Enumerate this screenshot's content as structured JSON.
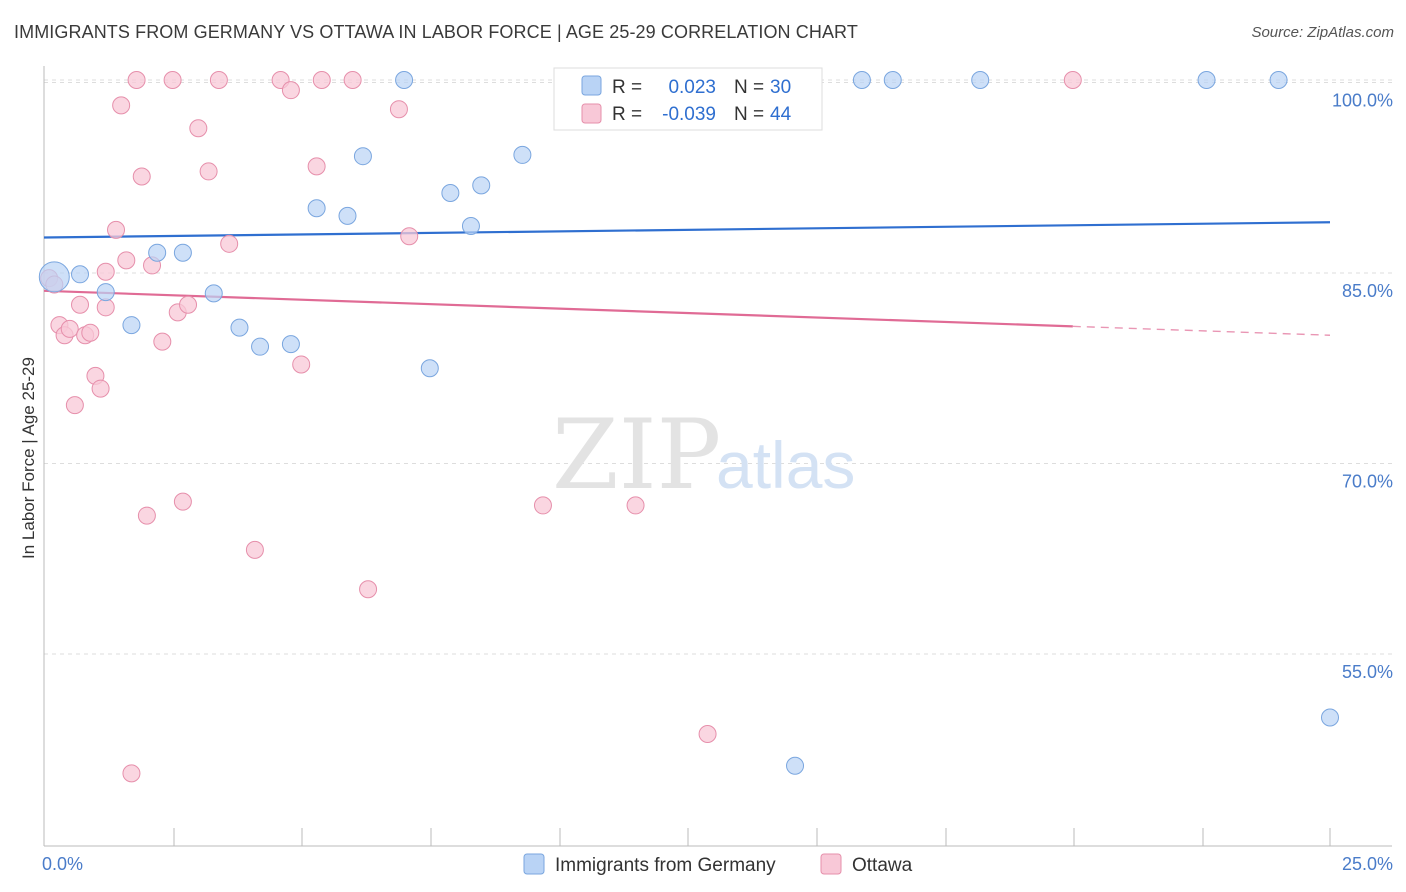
{
  "title": "IMMIGRANTS FROM GERMANY VS OTTAWA IN LABOR FORCE | AGE 25-29 CORRELATION CHART",
  "source": "Source: ZipAtlas.com",
  "watermark": {
    "zip": "ZIP",
    "atlas": "atlas"
  },
  "legend": {
    "r_label": "R =",
    "n_label": "N =",
    "entries": [
      {
        "r": "0.023",
        "n": "30"
      },
      {
        "r": "-0.039",
        "n": "44"
      }
    ]
  },
  "colors": {
    "germany_fill": "#b9d3f5",
    "germany_stroke": "#7aa6df",
    "germany_line": "#2f6fd0",
    "ottawa_fill": "#f8c8d7",
    "ottawa_stroke": "#e68fab",
    "ottawa_line": "#e06b95",
    "grid": "#dddddd",
    "axis_text": "#4a7cc9"
  },
  "chart_data": {
    "type": "scatter",
    "title": "IMMIGRANTS FROM GERMANY VS OTTAWA IN LABOR FORCE | AGE 25-29 CORRELATION CHART",
    "xlabel": "",
    "ylabel": "In Labor Force | Age 25-29",
    "xlim": [
      0,
      25
    ],
    "ylim": [
      40,
      101.5
    ],
    "x_ticks": [
      {
        "value": 0,
        "label": "0.0%"
      },
      {
        "value": 25,
        "label": "25.0%"
      }
    ],
    "y_ticks": [
      {
        "value": 100,
        "label": "100.0%"
      },
      {
        "value": 85,
        "label": "85.0%"
      },
      {
        "value": 70,
        "label": "70.0%"
      },
      {
        "value": 55,
        "label": "55.0%"
      }
    ],
    "grid": true,
    "legend_position": "top-center",
    "series": [
      {
        "name": "Immigrants from Germany",
        "r": 0.023,
        "n": 30,
        "trend": {
          "x0": 0,
          "y0": 87.8,
          "x1": 25,
          "y1": 89.0
        },
        "points": [
          {
            "x": 0.2,
            "y": 84.7
          },
          {
            "x": 0.7,
            "y": 84.9
          },
          {
            "x": 1.2,
            "y": 83.5
          },
          {
            "x": 1.7,
            "y": 80.9
          },
          {
            "x": 2.2,
            "y": 86.6
          },
          {
            "x": 2.7,
            "y": 86.6
          },
          {
            "x": 3.3,
            "y": 83.4
          },
          {
            "x": 3.8,
            "y": 80.7
          },
          {
            "x": 4.2,
            "y": 79.2
          },
          {
            "x": 4.8,
            "y": 79.4
          },
          {
            "x": 5.3,
            "y": 90.1
          },
          {
            "x": 5.9,
            "y": 89.5
          },
          {
            "x": 6.2,
            "y": 94.2
          },
          {
            "x": 7.0,
            "y": 100.2
          },
          {
            "x": 7.5,
            "y": 77.5
          },
          {
            "x": 7.9,
            "y": 91.3
          },
          {
            "x": 8.3,
            "y": 88.7
          },
          {
            "x": 8.5,
            "y": 91.9
          },
          {
            "x": 9.3,
            "y": 94.3
          },
          {
            "x": 10.7,
            "y": 100.2
          },
          {
            "x": 11.4,
            "y": 100.3
          },
          {
            "x": 12.0,
            "y": 100.2
          },
          {
            "x": 14.0,
            "y": 100.2
          },
          {
            "x": 14.6,
            "y": 46.2
          },
          {
            "x": 15.9,
            "y": 100.2
          },
          {
            "x": 16.5,
            "y": 100.2
          },
          {
            "x": 18.2,
            "y": 100.2
          },
          {
            "x": 22.6,
            "y": 100.2
          },
          {
            "x": 24.0,
            "y": 100.2
          },
          {
            "x": 25.0,
            "y": 50.0
          }
        ]
      },
      {
        "name": "Ottawa",
        "r": -0.039,
        "n": 44,
        "trend": {
          "x0": 0,
          "y0": 83.6,
          "x1": 20.0,
          "y1": 80.8
        },
        "trend_dashed": {
          "x0": 20.0,
          "y0": 80.8,
          "x1": 25,
          "y1": 80.1
        },
        "points": [
          {
            "x": 0.1,
            "y": 84.6
          },
          {
            "x": 0.2,
            "y": 84.1
          },
          {
            "x": 0.3,
            "y": 80.9
          },
          {
            "x": 0.4,
            "y": 80.1
          },
          {
            "x": 0.5,
            "y": 80.6
          },
          {
            "x": 0.6,
            "y": 74.6
          },
          {
            "x": 0.7,
            "y": 82.5
          },
          {
            "x": 0.8,
            "y": 80.1
          },
          {
            "x": 0.9,
            "y": 80.3
          },
          {
            "x": 1.0,
            "y": 76.9
          },
          {
            "x": 1.1,
            "y": 75.9
          },
          {
            "x": 1.2,
            "y": 82.3
          },
          {
            "x": 1.2,
            "y": 85.1
          },
          {
            "x": 1.4,
            "y": 88.4
          },
          {
            "x": 1.5,
            "y": 98.2
          },
          {
            "x": 1.6,
            "y": 86.0
          },
          {
            "x": 1.7,
            "y": 45.6
          },
          {
            "x": 1.8,
            "y": 100.2
          },
          {
            "x": 1.9,
            "y": 92.6
          },
          {
            "x": 2.0,
            "y": 65.9
          },
          {
            "x": 2.1,
            "y": 85.6
          },
          {
            "x": 2.3,
            "y": 79.6
          },
          {
            "x": 2.5,
            "y": 100.2
          },
          {
            "x": 2.6,
            "y": 81.9
          },
          {
            "x": 2.7,
            "y": 67.0
          },
          {
            "x": 2.8,
            "y": 82.5
          },
          {
            "x": 3.0,
            "y": 96.4
          },
          {
            "x": 3.2,
            "y": 93.0
          },
          {
            "x": 3.4,
            "y": 100.2
          },
          {
            "x": 3.6,
            "y": 87.3
          },
          {
            "x": 4.1,
            "y": 63.2
          },
          {
            "x": 4.6,
            "y": 100.2
          },
          {
            "x": 4.8,
            "y": 99.4
          },
          {
            "x": 5.0,
            "y": 77.8
          },
          {
            "x": 5.3,
            "y": 93.4
          },
          {
            "x": 5.4,
            "y": 100.2
          },
          {
            "x": 6.0,
            "y": 100.2
          },
          {
            "x": 6.3,
            "y": 60.1
          },
          {
            "x": 6.9,
            "y": 97.9
          },
          {
            "x": 7.1,
            "y": 87.9
          },
          {
            "x": 9.7,
            "y": 66.7
          },
          {
            "x": 11.5,
            "y": 66.7
          },
          {
            "x": 12.9,
            "y": 48.7
          },
          {
            "x": 20.0,
            "y": 100.2
          }
        ]
      }
    ]
  }
}
